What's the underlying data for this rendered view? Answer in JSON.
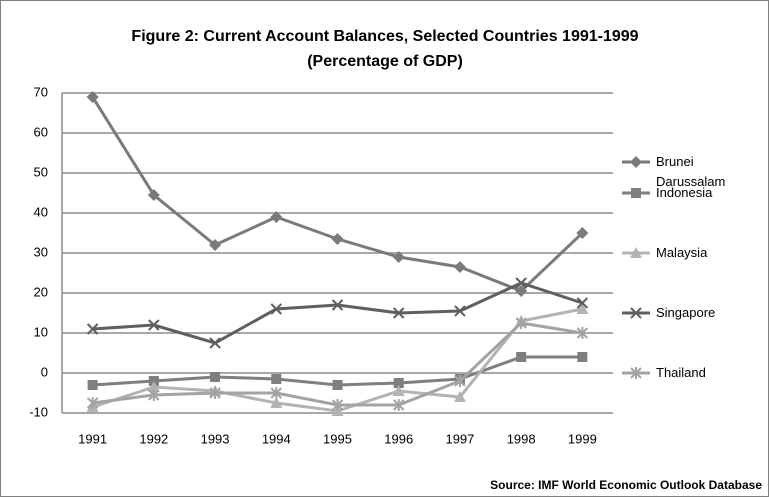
{
  "chart_data": {
    "type": "line",
    "title": "Figure 2: Current Account Balances, Selected Countries 1991-1999",
    "subtitle": "(Percentage of GDP)",
    "source": "Source: IMF World Economic Outlook Database",
    "categories": [
      "1991",
      "1992",
      "1993",
      "1994",
      "1995",
      "1996",
      "1997",
      "1998",
      "1999"
    ],
    "series": [
      {
        "name": "Brunei Darussalam",
        "color": "#7a7a7a",
        "marker": "diamond",
        "values": [
          69,
          44.5,
          32,
          39,
          33.5,
          29,
          26.5,
          20.5,
          35
        ]
      },
      {
        "name": "Indonesia",
        "color": "#7f7f7f",
        "marker": "square",
        "values": [
          -3,
          -2,
          -1,
          -1.5,
          -3,
          -2.5,
          -1.5,
          4,
          4
        ]
      },
      {
        "name": "Malaysia",
        "color": "#b3b3b3",
        "marker": "triangle",
        "values": [
          -8.5,
          -3.5,
          -4.5,
          -7.5,
          -9.5,
          -4.5,
          -6,
          13,
          16
        ]
      },
      {
        "name": "Singapore",
        "color": "#5f5f5f",
        "marker": "x",
        "values": [
          11,
          12,
          7.5,
          16,
          17,
          15,
          15.5,
          22.5,
          17.5
        ]
      },
      {
        "name": "Thailand",
        "color": "#a3a3a3",
        "marker": "asterisk",
        "values": [
          -7.5,
          -5.5,
          -5,
          -5,
          -8,
          -8,
          -2,
          12.5,
          10
        ]
      }
    ],
    "ylim": [
      -10,
      70
    ],
    "yticks": [
      -10,
      0,
      10,
      20,
      30,
      40,
      50,
      60,
      70
    ],
    "grid": true,
    "legend": "right"
  }
}
